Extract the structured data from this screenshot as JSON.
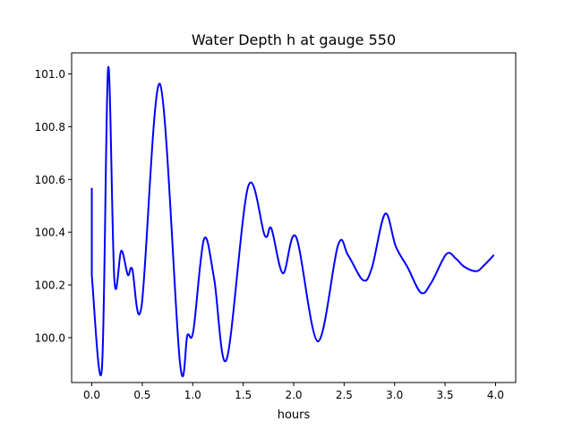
{
  "chart_data": {
    "type": "line",
    "title": "Water Depth h at gauge 550",
    "xlabel": "hours",
    "ylabel": "",
    "xlim": [
      -0.2,
      4.2
    ],
    "ylim": [
      99.83,
      101.08
    ],
    "xticks": [
      0.0,
      0.5,
      1.0,
      1.5,
      2.0,
      2.5,
      3.0,
      3.5,
      4.0
    ],
    "xtick_labels": [
      "0.0",
      "0.5",
      "1.0",
      "1.5",
      "2.0",
      "2.5",
      "3.0",
      "3.5",
      "4.0"
    ],
    "yticks": [
      100.0,
      100.2,
      100.4,
      100.6,
      100.8,
      101.0
    ],
    "ytick_labels": [
      "100.0",
      "100.2",
      "100.4",
      "100.6",
      "100.8",
      "101.0"
    ],
    "grid": false,
    "series": [
      {
        "name": "h",
        "color": "#0000ff",
        "x": [
          0,
          0,
          0.1,
          0.162,
          0.224,
          0.292,
          0.357,
          0.4,
          0.493,
          0.675,
          0.873,
          0.947,
          1.006,
          1.112,
          1.212,
          1.336,
          1.549,
          1.714,
          1.779,
          1.894,
          2.024,
          2.239,
          2.44,
          2.54,
          2.688,
          2.776,
          2.906,
          3.012,
          3.13,
          3.263,
          3.366,
          3.513,
          3.607,
          3.69,
          3.808,
          3.88,
          3.985
        ],
        "y": [
          100.568,
          100.235,
          99.882,
          101.024,
          100.217,
          100.33,
          100.238,
          100.261,
          100.12,
          100.962,
          99.907,
          100.009,
          100.026,
          100.374,
          100.224,
          99.918,
          100.573,
          100.387,
          100.414,
          100.244,
          100.382,
          99.986,
          100.351,
          100.312,
          100.218,
          100.266,
          100.47,
          100.346,
          100.266,
          100.17,
          100.21,
          100.317,
          100.3,
          100.269,
          100.252,
          100.272,
          100.314
        ]
      }
    ]
  }
}
